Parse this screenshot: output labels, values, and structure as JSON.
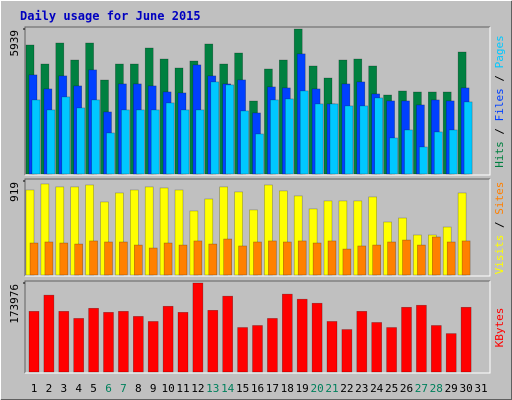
{
  "chart_data": [
    {
      "type": "bar",
      "title": "Daily usage for June 2015",
      "ylim": [
        0,
        5939
      ],
      "yticks": [
        5939
      ],
      "series": [
        {
          "name": "Hits",
          "color": "#008040",
          "values": [
            5284,
            4505,
            5366,
            4669,
            5366,
            3850,
            4505,
            4505,
            5161,
            4710,
            4342,
            4628,
            5325,
            4505,
            4956,
            2990,
            4301,
            4669,
            5939,
            4424,
            3932,
            4669,
            4710,
            4424,
            3236,
            3400,
            3359,
            3359,
            3359,
            4997,
            null
          ]
        },
        {
          "name": "Files",
          "color": "#0040ff",
          "values": [
            4059,
            3485,
            4018,
            3608,
            4264,
            2542,
            3690,
            3690,
            3608,
            3362,
            3321,
            4469,
            4018,
            3690,
            3854,
            2501,
            3567,
            3526,
            4920,
            3485,
            2870,
            3690,
            3772,
            3280,
            2993,
            2993,
            2829,
            3034,
            2993,
            3526,
            null
          ]
        },
        {
          "name": "Pages",
          "color": "#00c8ff",
          "values": [
            3034,
            2624,
            3157,
            2706,
            3034,
            1681,
            2624,
            2624,
            2624,
            2911,
            2624,
            2624,
            3772,
            3649,
            2583,
            1640,
            3034,
            3075,
            3403,
            2870,
            2870,
            2788,
            2788,
            3116,
            1476,
            1804,
            1107,
            1722,
            1804,
            2952,
            null
          ]
        }
      ]
    },
    {
      "type": "bar",
      "ylim": [
        0,
        919
      ],
      "yticks": [
        919
      ],
      "series": [
        {
          "name": "Visits",
          "color": "#ffff00",
          "values": [
            831,
            890,
            861,
            861,
            880,
            714,
            802,
            831,
            861,
            851,
            831,
            626,
            743,
            861,
            812,
            636,
            880,
            822,
            773,
            646,
            724,
            724,
            724,
            763,
            518,
            557,
            391,
            391,
            469,
            802,
            null
          ]
        },
        {
          "name": "Sites",
          "color": "#ff8000",
          "values": [
            313,
            323,
            313,
            303,
            333,
            323,
            323,
            293,
            264,
            313,
            293,
            333,
            303,
            352,
            284,
            323,
            333,
            323,
            333,
            313,
            333,
            254,
            284,
            293,
            323,
            342,
            293,
            372,
            323,
            333,
            null
          ]
        }
      ]
    },
    {
      "type": "bar",
      "ylim": [
        0,
        173976
      ],
      "yticks": [
        173976
      ],
      "categories": [
        "1",
        "2",
        "3",
        "4",
        "5",
        "6",
        "7",
        "8",
        "9",
        "10",
        "11",
        "12",
        "13",
        "14",
        "15",
        "16",
        "17",
        "18",
        "19",
        "20",
        "21",
        "22",
        "23",
        "24",
        "25",
        "26",
        "27",
        "28",
        "29",
        "30",
        "31"
      ],
      "label_colors": [
        "#000000",
        "#000000",
        "#000000",
        "#000000",
        "#000000",
        "#00805c",
        "#00805c",
        "#000000",
        "#000000",
        "#000000",
        "#000000",
        "#000000",
        "#00805c",
        "#00805c",
        "#000000",
        "#000000",
        "#000000",
        "#000000",
        "#000000",
        "#00805c",
        "#00805c",
        "#000000",
        "#000000",
        "#000000",
        "#000000",
        "#000000",
        "#00805c",
        "#00805c",
        "#000000",
        "#000000",
        "#000000"
      ],
      "series": [
        {
          "name": "KBytes",
          "color": "#ff0000",
          "values": [
            118620,
            150252,
            118620,
            104781,
            124551,
            116643,
            118620,
            108735,
            98850,
            128505,
            116643,
            173976,
            120597,
            148275,
            86988,
            90942,
            104781,
            152229,
            142344,
            134436,
            98850,
            83034,
            118620,
            96873,
            86988,
            126528,
            130482,
            90942,
            75126,
            126528,
            null
          ]
        }
      ]
    }
  ]
}
